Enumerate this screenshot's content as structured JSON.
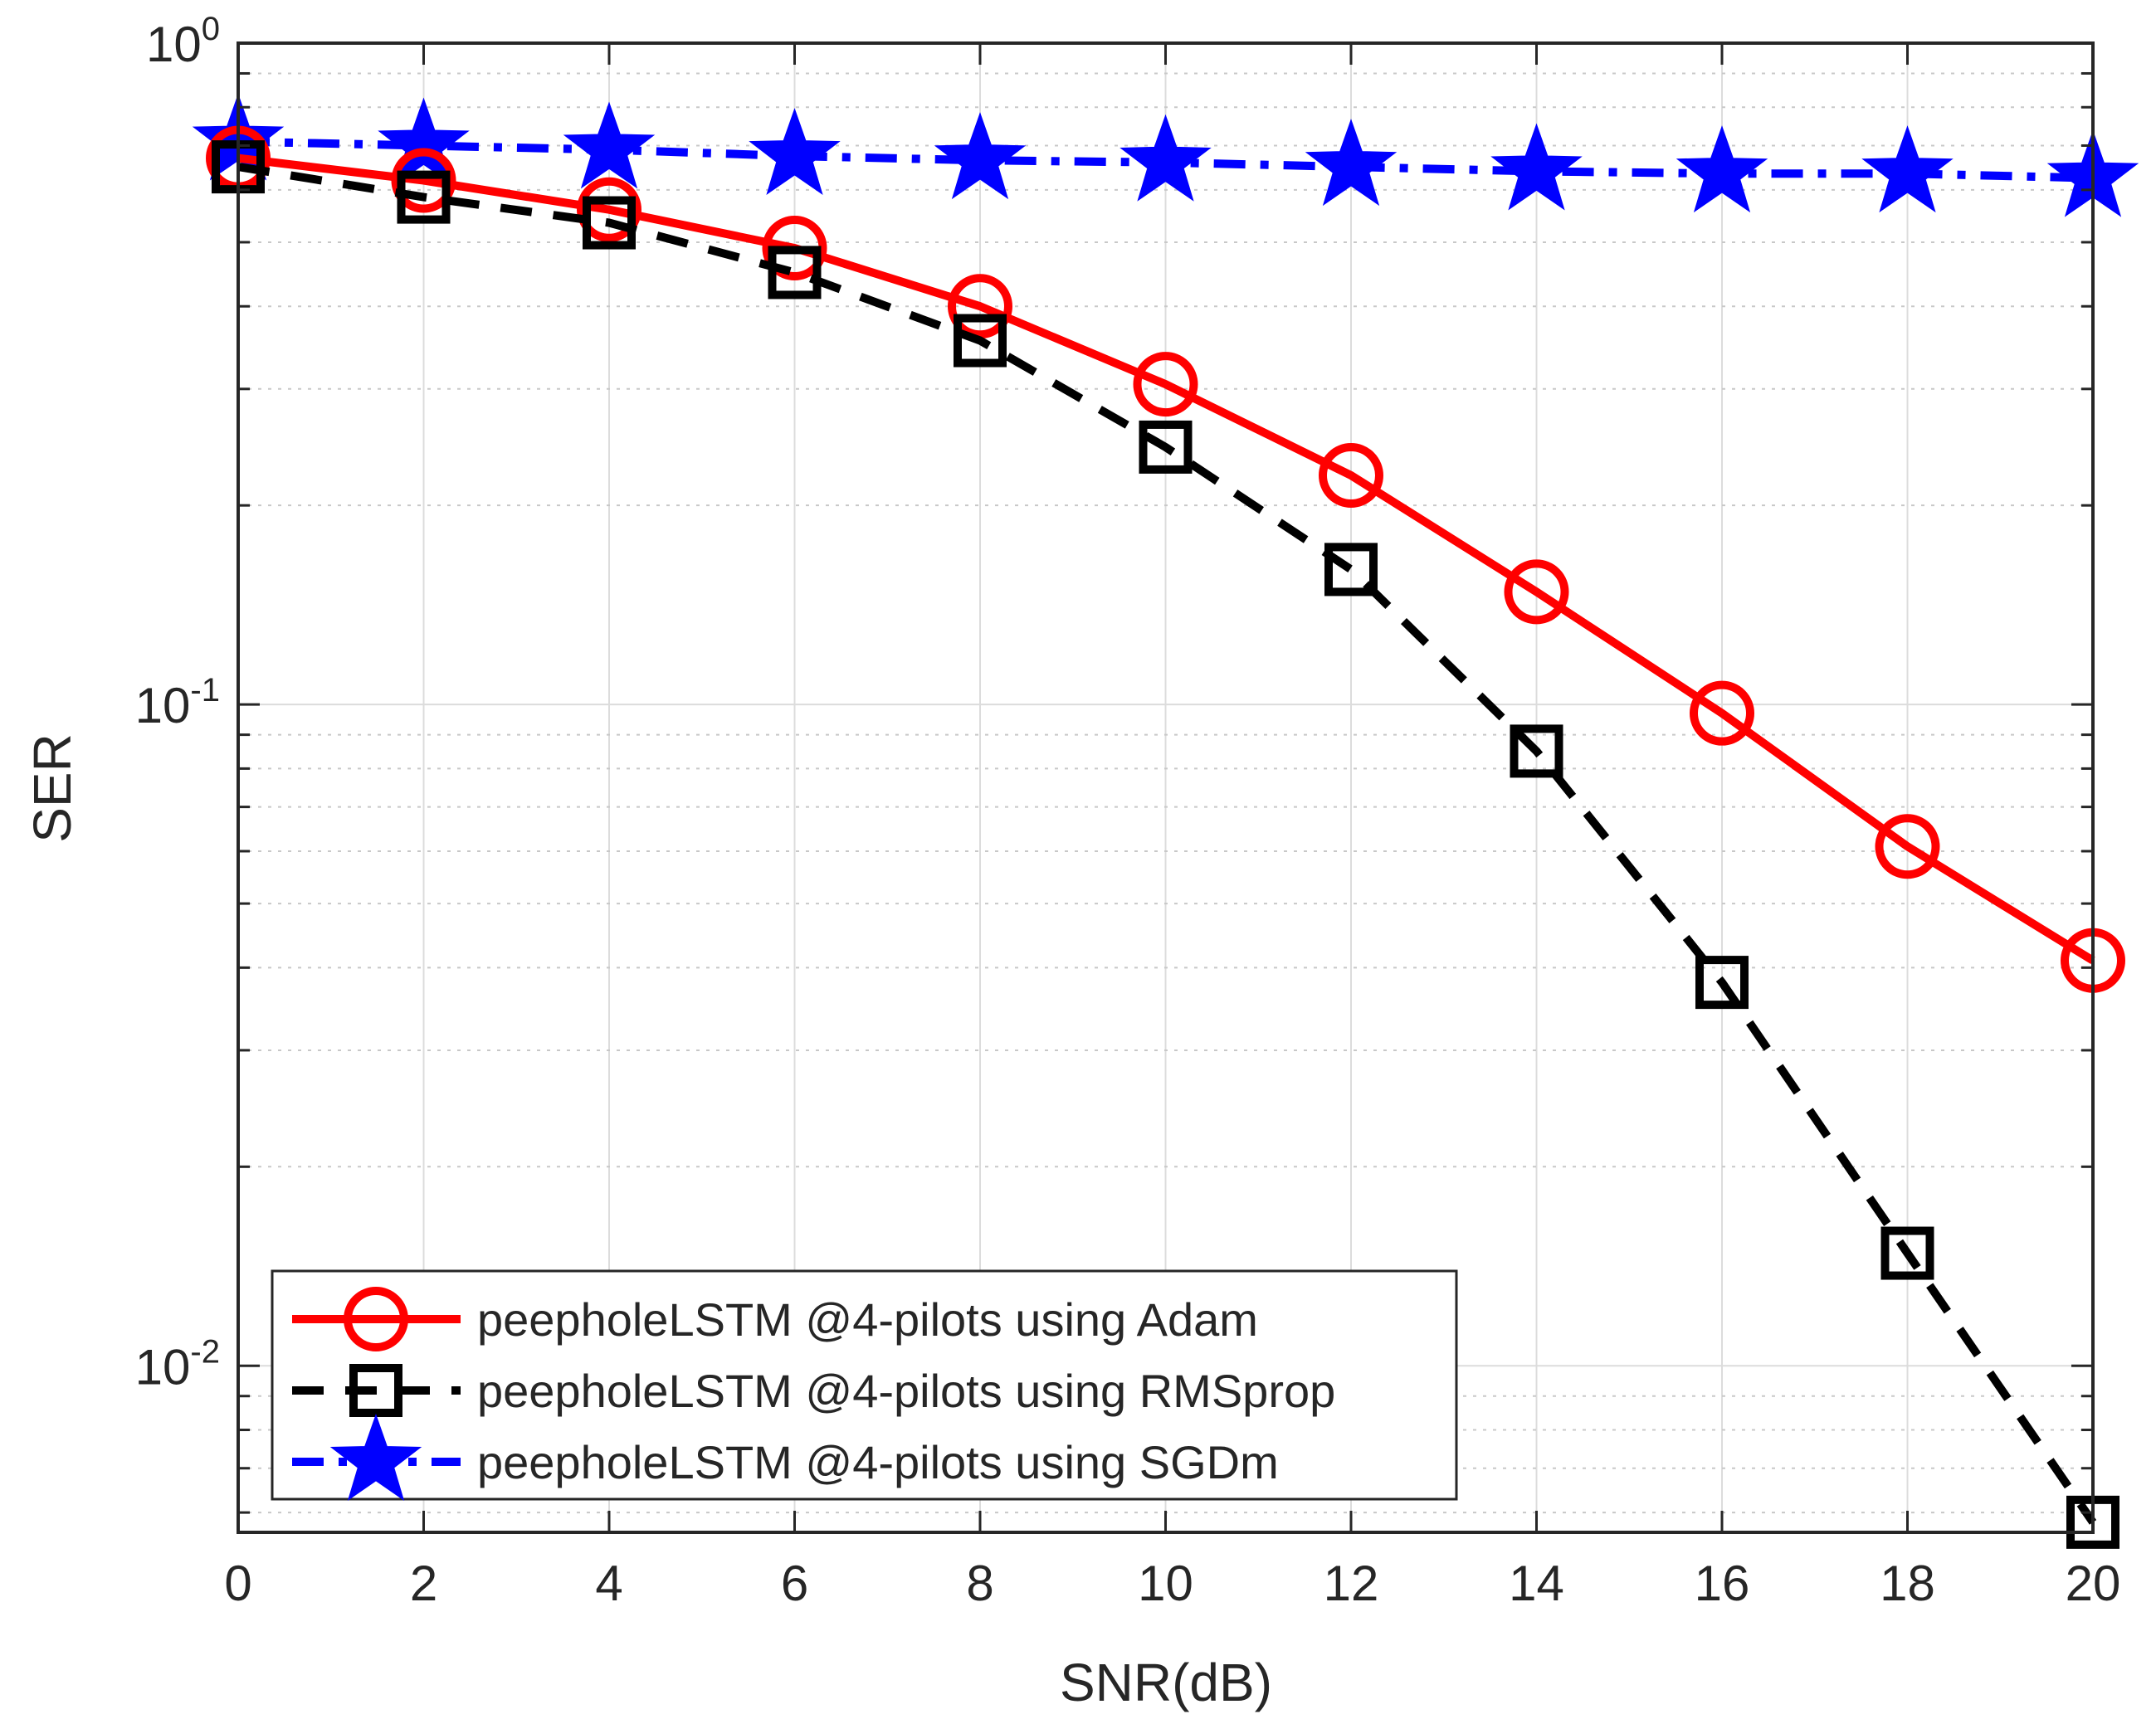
{
  "chart_data": {
    "type": "line",
    "xlabel": "SNR(dB)",
    "ylabel": "SER",
    "xlim": [
      0,
      20
    ],
    "ylim": [
      0.0056,
      1
    ],
    "yscale": "log",
    "grid": true,
    "minor_grid": true,
    "legend_position": "bottom-left",
    "x": [
      0,
      2,
      4,
      6,
      8,
      10,
      12,
      14,
      16,
      18,
      20
    ],
    "xticks": [
      "0",
      "2",
      "4",
      "6",
      "8",
      "10",
      "12",
      "14",
      "16",
      "18",
      "20"
    ],
    "yticks": [
      {
        "value": 1,
        "base": "10",
        "exp": "0"
      },
      {
        "value": 0.1,
        "base": "10",
        "exp": "-1"
      },
      {
        "value": 0.01,
        "base": "10",
        "exp": "-2"
      }
    ],
    "series": [
      {
        "name": "peepholeLSTM @4-pilots using Adam",
        "color": "#ff0000",
        "marker": "circle",
        "linestyle": "solid",
        "values": [
          0.67,
          0.62,
          0.56,
          0.49,
          0.4,
          0.305,
          0.222,
          0.148,
          0.097,
          0.061,
          0.041
        ]
      },
      {
        "name": "peepholeLSTM @4-pilots using RMSprop",
        "color": "#000000",
        "marker": "square",
        "linestyle": "dashed",
        "values": [
          0.65,
          0.585,
          0.535,
          0.45,
          0.355,
          0.245,
          0.16,
          0.085,
          0.038,
          0.0148,
          0.0058
        ]
      },
      {
        "name": "peepholeLSTM @4-pilots using SGDm",
        "color": "#0000ff",
        "marker": "star",
        "linestyle": "dashdot",
        "values": [
          0.71,
          0.7,
          0.69,
          0.675,
          0.665,
          0.66,
          0.65,
          0.64,
          0.635,
          0.635,
          0.625
        ]
      }
    ]
  }
}
